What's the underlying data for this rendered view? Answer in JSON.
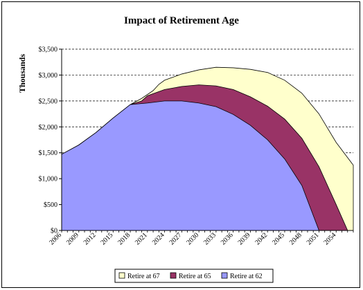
{
  "chart_data": {
    "type": "area",
    "title": "Impact of Retirement Age",
    "xlabel": "",
    "ylabel": "Thousands",
    "ylim": [
      0,
      3500
    ],
    "yticks": [
      0,
      500,
      1000,
      1500,
      2000,
      2500,
      3000,
      3500
    ],
    "ytick_labels": [
      "$0",
      "$500",
      "$1,000",
      "$1,500",
      "$2,000",
      "$2,500",
      "$3,000",
      "$3,500"
    ],
    "xlim": [
      2006,
      2057
    ],
    "xticks": [
      2006,
      2009,
      2012,
      2015,
      2018,
      2021,
      2024,
      2027,
      2030,
      2033,
      2036,
      2039,
      2042,
      2045,
      2048,
      2051,
      2054
    ],
    "xtick_labels": [
      "2006",
      "2009",
      "2012",
      "2015",
      "2018",
      "2021",
      "2024",
      "2027",
      "2030",
      "2033",
      "2036",
      "2039",
      "2042",
      "2045",
      "2048",
      "2051",
      "2054"
    ],
    "grid": "horizontal dashed",
    "legend_position": "bottom",
    "series": [
      {
        "name": "Retire at 67",
        "color": "#ffffcc",
        "x": [
          2006,
          2009,
          2012,
          2015,
          2018,
          2020,
          2022,
          2023,
          2024,
          2027,
          2030,
          2033,
          2036,
          2039,
          2042,
          2045,
          2048,
          2051,
          2054,
          2057
        ],
        "values": [
          1470,
          1650,
          1890,
          2170,
          2430,
          2550,
          2700,
          2820,
          2900,
          3020,
          3100,
          3150,
          3140,
          3110,
          3050,
          2900,
          2650,
          2250,
          1700,
          1260
        ]
      },
      {
        "name": "Retire at 65",
        "color": "#993366",
        "x": [
          2006,
          2009,
          2012,
          2015,
          2018,
          2020,
          2021,
          2024,
          2027,
          2030,
          2033,
          2036,
          2039,
          2042,
          2045,
          2048,
          2051,
          2054,
          2056
        ],
        "values": [
          1470,
          1650,
          1890,
          2170,
          2430,
          2500,
          2600,
          2720,
          2780,
          2810,
          2790,
          2720,
          2580,
          2400,
          2150,
          1780,
          1230,
          500,
          0
        ]
      },
      {
        "name": "Retire at 62",
        "color": "#9999ff",
        "x": [
          2006,
          2009,
          2012,
          2015,
          2018,
          2021,
          2024,
          2027,
          2030,
          2033,
          2036,
          2039,
          2042,
          2045,
          2048,
          2051
        ],
        "values": [
          1470,
          1650,
          1890,
          2170,
          2430,
          2460,
          2500,
          2500,
          2460,
          2390,
          2240,
          2030,
          1750,
          1380,
          870,
          0
        ]
      }
    ],
    "legend": [
      "Retire at 67",
      "Retire at 65",
      "Retire at 62"
    ]
  }
}
